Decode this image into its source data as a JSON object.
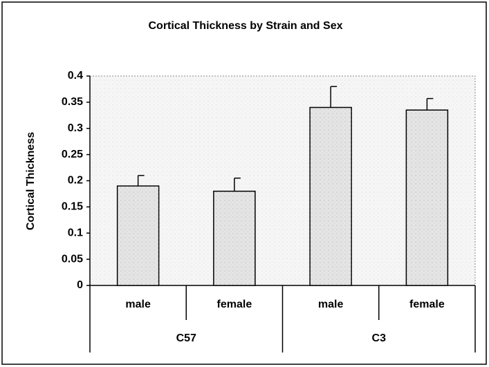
{
  "chart_data": {
    "type": "bar",
    "title": "Cortical Thickness by Strain and Sex",
    "y_label": "Cortical Thickness",
    "categories": [
      "male",
      "female",
      "male",
      "female"
    ],
    "groups": [
      "C57",
      "C3"
    ],
    "values": [
      0.19,
      0.18,
      0.34,
      0.335
    ],
    "errors": [
      0.02,
      0.025,
      0.04,
      0.022
    ],
    "color": "#e4e4e4",
    "ylim": [
      0,
      0.4
    ],
    "yticks": [
      0,
      0.05,
      0.1,
      0.15,
      0.2,
      0.25,
      0.3,
      0.35,
      0.4
    ]
  }
}
